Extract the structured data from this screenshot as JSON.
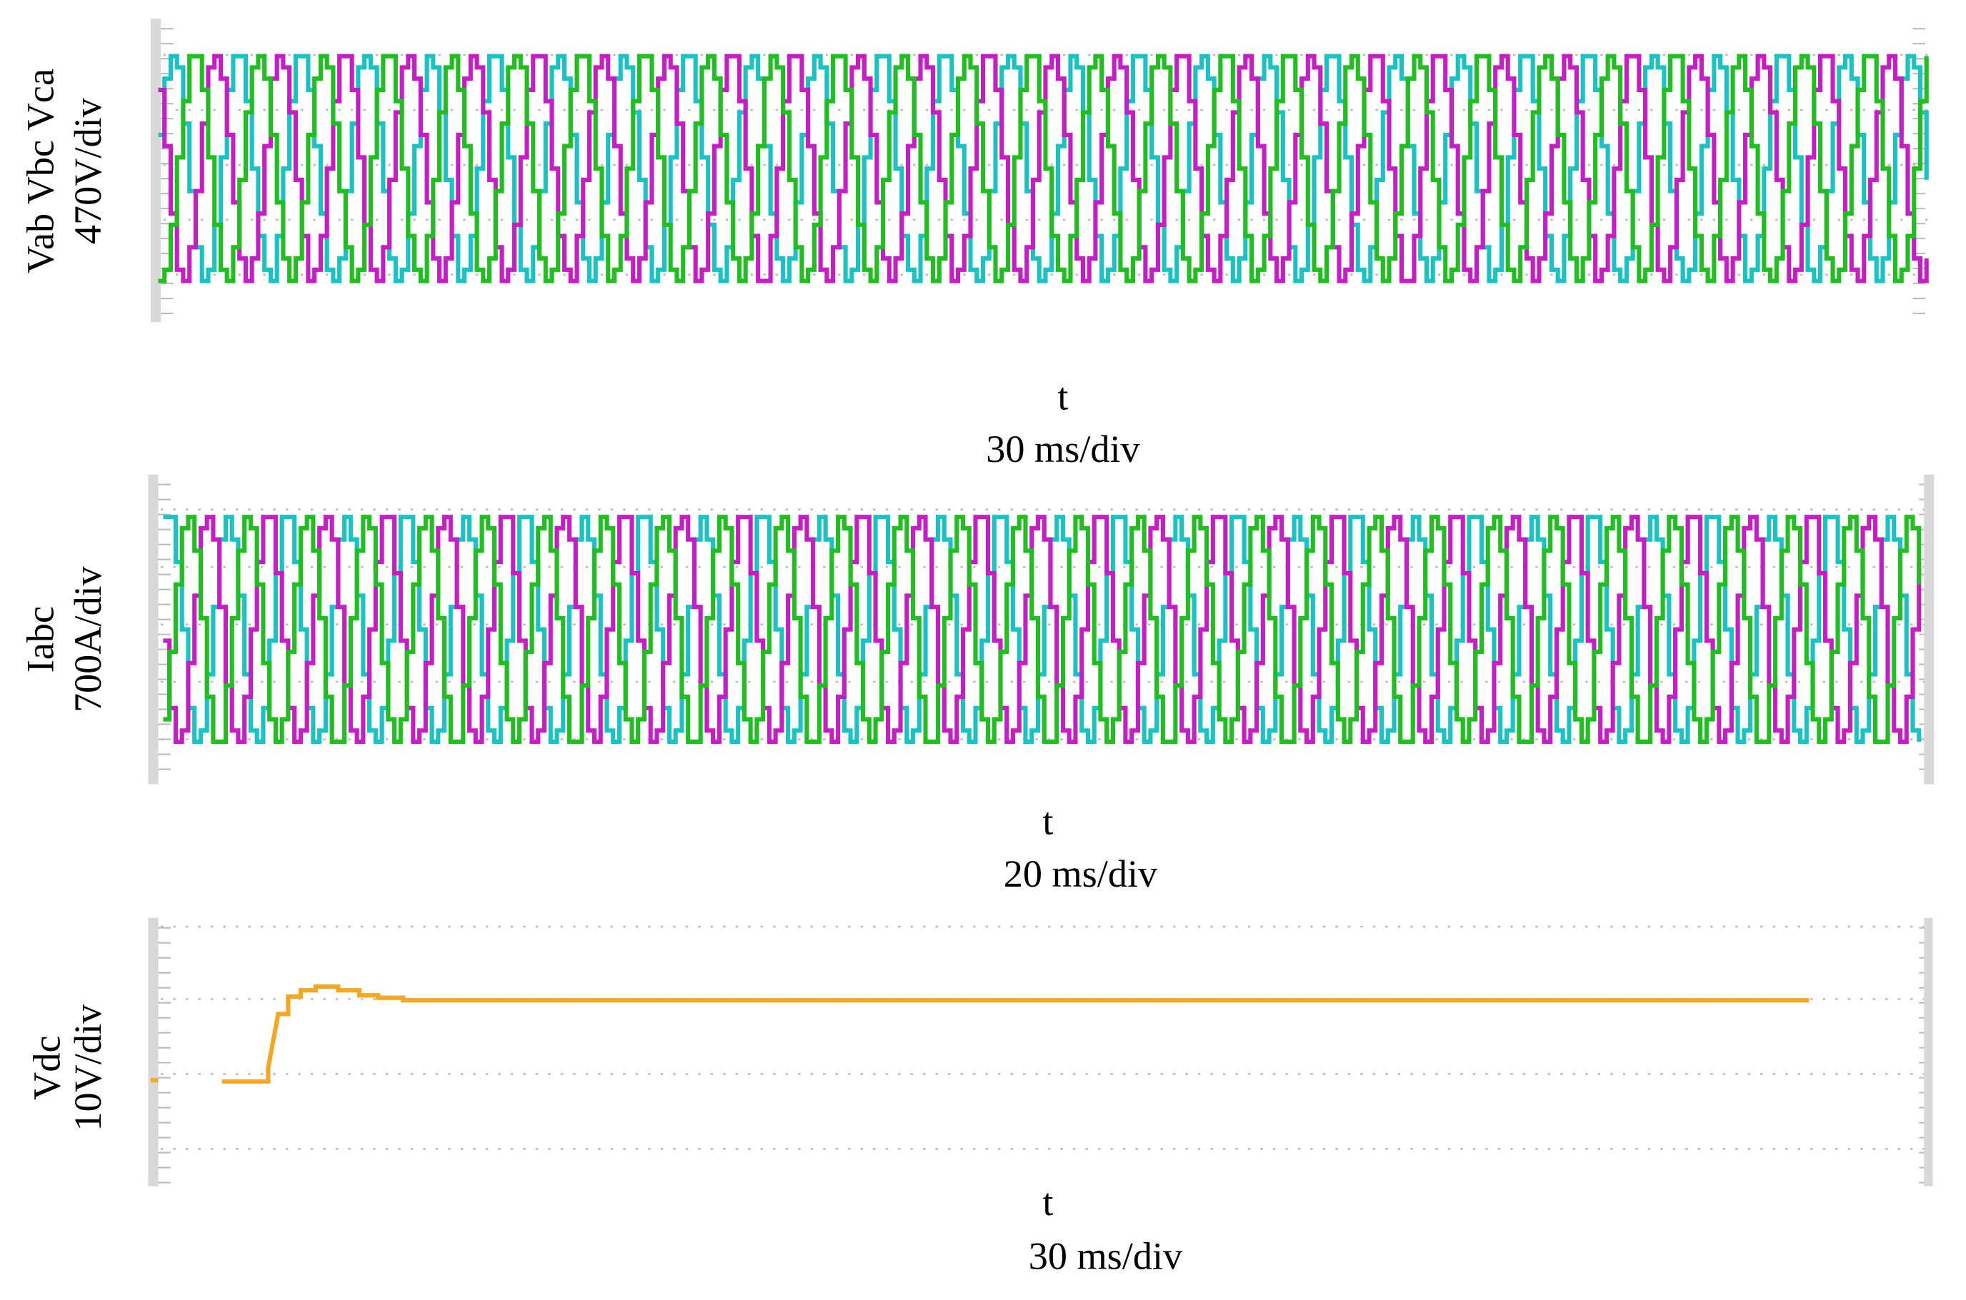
{
  "panels": [
    {
      "ylabel": [
        "Vab Vbc Vca",
        "470V/div"
      ],
      "xlabel": [
        "t",
        "30 ms/div"
      ]
    },
    {
      "ylabel": [
        "Iabc",
        "700A/div"
      ],
      "xlabel": [
        "t",
        "20 ms/div"
      ]
    },
    {
      "ylabel": [
        "Vdc",
        "10V/div"
      ],
      "xlabel": [
        "t",
        "30 ms/div"
      ]
    }
  ]
}
